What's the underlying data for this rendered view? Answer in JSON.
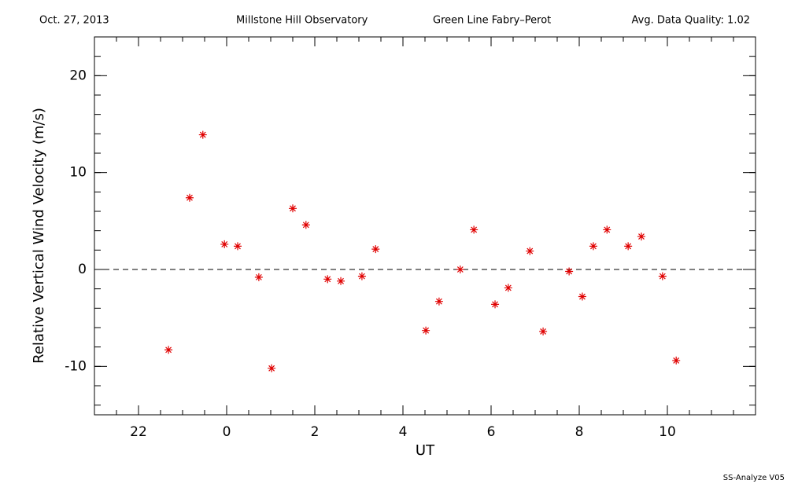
{
  "chart_data": {
    "type": "scatter",
    "header_left": "Oct. 27, 2013",
    "header_center": "Millstone Hill Observatory",
    "header_instrument": "Green Line Fabry–Perot",
    "header_right": "Avg. Data Quality: 1.02",
    "footer": "SS-Analyze V05",
    "xlabel": "UT",
    "ylabel": "Relative Vertical Wind Velocity (m/s)",
    "xlim": [
      -3,
      12
    ],
    "ylim": [
      -15,
      24
    ],
    "xticks": [
      {
        "value": -2,
        "label": "22"
      },
      0,
      2,
      4,
      6,
      8,
      10
    ],
    "yticks": [
      -10,
      0,
      10,
      20
    ],
    "reference_y": 0,
    "color": "#e00000",
    "x": [
      -1.32,
      -0.84,
      -0.54,
      -0.05,
      0.25,
      0.73,
      1.02,
      1.5,
      1.8,
      2.29,
      2.59,
      3.07,
      3.38,
      4.52,
      4.82,
      5.3,
      5.61,
      6.09,
      6.39,
      6.88,
      7.18,
      7.77,
      8.07,
      8.32,
      8.63,
      9.11,
      9.41,
      9.89,
      10.2
    ],
    "values": [
      -8.3,
      7.4,
      13.9,
      2.6,
      2.4,
      -0.8,
      -10.2,
      6.3,
      4.6,
      -1.0,
      -1.2,
      -0.7,
      2.1,
      -6.3,
      -3.3,
      0,
      4.1,
      -3.6,
      -1.9,
      1.9,
      -6.4,
      -0.2,
      -2.8,
      2.4,
      4.1,
      2.4,
      3.4,
      -0.7,
      -9.4
    ]
  }
}
